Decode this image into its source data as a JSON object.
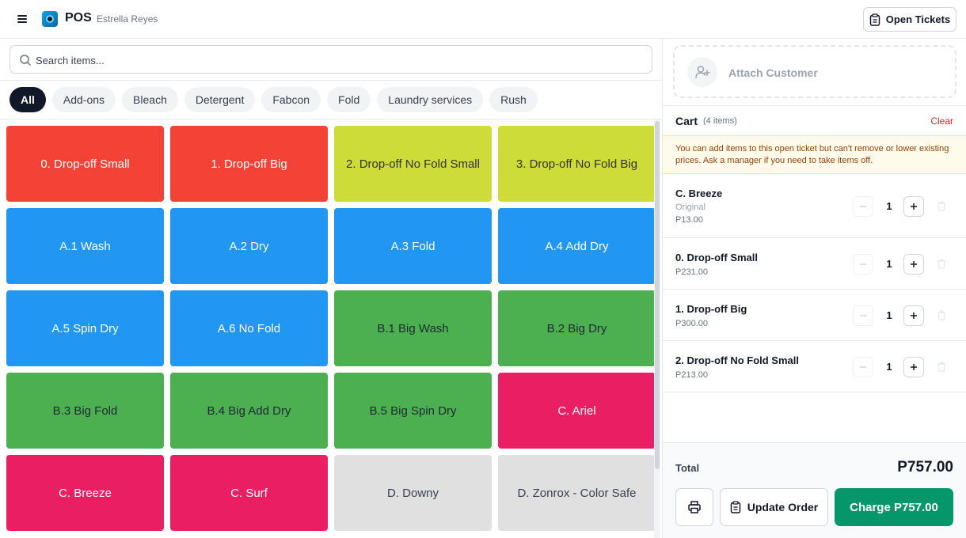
{
  "header": {
    "app_title": "POS",
    "user_name": "Estrella Reyes",
    "open_tickets_label": "Open Tickets"
  },
  "search": {
    "placeholder": "Search items..."
  },
  "categories": [
    {
      "label": "All",
      "active": true
    },
    {
      "label": "Add-ons",
      "active": false
    },
    {
      "label": "Bleach",
      "active": false
    },
    {
      "label": "Detergent",
      "active": false
    },
    {
      "label": "Fabcon",
      "active": false
    },
    {
      "label": "Fold",
      "active": false
    },
    {
      "label": "Laundry services",
      "active": false
    },
    {
      "label": "Rush",
      "active": false
    }
  ],
  "colors": {
    "red": "#f44336",
    "lime": "#cddc39",
    "blue": "#2196f3",
    "green": "#4caf50",
    "pink": "#e91e63",
    "gray": "#e0e0e0",
    "charge_green": "#059669",
    "clear_red": "#dc2626"
  },
  "items": [
    {
      "label": "0. Drop-off Small",
      "color": "#f44336",
      "text_color": "#ffffff"
    },
    {
      "label": "1. Drop-off Big",
      "color": "#f44336",
      "text_color": "#ffffff"
    },
    {
      "label": "2. Drop-off No Fold Small",
      "color": "#cddc39",
      "text_color": "#333333"
    },
    {
      "label": "3. Drop-off No Fold Big",
      "color": "#cddc39",
      "text_color": "#333333"
    },
    {
      "label": "A.1 Wash",
      "color": "#2196f3",
      "text_color": "#ffffff"
    },
    {
      "label": "A.2 Dry",
      "color": "#2196f3",
      "text_color": "#ffffff"
    },
    {
      "label": "A.3 Fold",
      "color": "#2196f3",
      "text_color": "#ffffff"
    },
    {
      "label": "A.4 Add Dry",
      "color": "#2196f3",
      "text_color": "#ffffff"
    },
    {
      "label": "A.5 Spin Dry",
      "color": "#2196f3",
      "text_color": "#ffffff"
    },
    {
      "label": "A.6 No Fold",
      "color": "#2196f3",
      "text_color": "#ffffff"
    },
    {
      "label": "B.1 Big Wash",
      "color": "#4caf50",
      "text_color": "#1f2937"
    },
    {
      "label": "B.2 Big Dry",
      "color": "#4caf50",
      "text_color": "#1f2937"
    },
    {
      "label": "B.3 Big Fold",
      "color": "#4caf50",
      "text_color": "#1f2937"
    },
    {
      "label": "B.4 Big Add Dry",
      "color": "#4caf50",
      "text_color": "#1f2937"
    },
    {
      "label": "B.5 Big Spin Dry",
      "color": "#4caf50",
      "text_color": "#1f2937"
    },
    {
      "label": "C. Ariel",
      "color": "#e91e63",
      "text_color": "#ffffff"
    },
    {
      "label": "C. Breeze",
      "color": "#e91e63",
      "text_color": "#ffffff"
    },
    {
      "label": "C. Surf",
      "color": "#e91e63",
      "text_color": "#ffffff"
    },
    {
      "label": "D. Downy",
      "color": "#e0e0e0",
      "text_color": "#374151"
    },
    {
      "label": "D. Zonrox - Color Safe",
      "color": "#e0e0e0",
      "text_color": "#374151"
    }
  ],
  "customer": {
    "attach_label": "Attach Customer"
  },
  "cart": {
    "title": "Cart",
    "count_label": "(4 items)",
    "clear_label": "Clear",
    "notice": "You can add items to this open ticket but can't remove or lower existing prices. Ask a manager if you need to take items off.",
    "items": [
      {
        "name": "C. Breeze",
        "variant": "Original",
        "price": "P13.00",
        "qty": "1"
      },
      {
        "name": "0. Drop-off Small",
        "variant": "",
        "price": "P231.00",
        "qty": "1"
      },
      {
        "name": "1. Drop-off Big",
        "variant": "",
        "price": "P300.00",
        "qty": "1"
      },
      {
        "name": "2. Drop-off No Fold Small",
        "variant": "",
        "price": "P213.00",
        "qty": "1"
      }
    ]
  },
  "footer": {
    "total_label": "Total",
    "total_value": "P757.00",
    "update_label": "Update Order",
    "charge_label": "Charge P757.00"
  }
}
